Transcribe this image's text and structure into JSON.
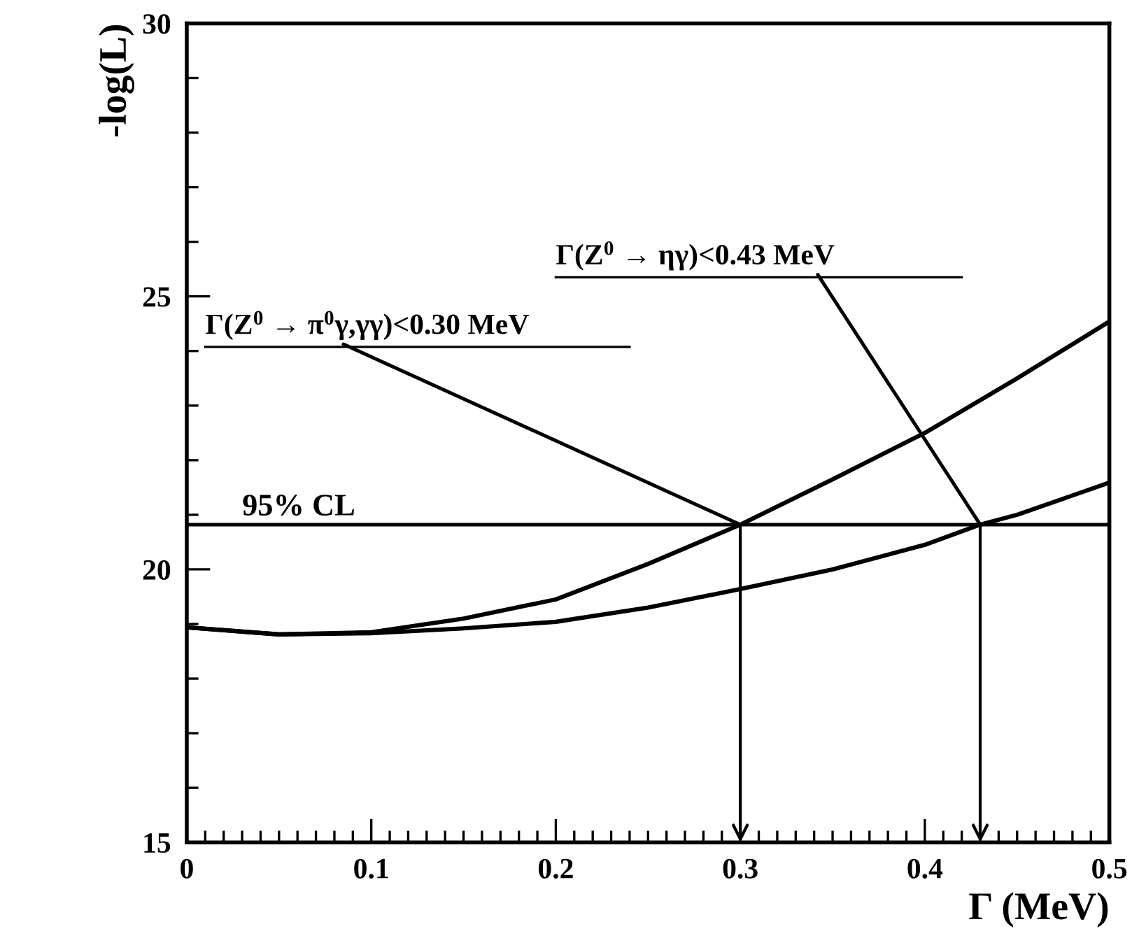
{
  "chart_data": {
    "type": "line",
    "xlabel": "Γ (MeV)",
    "ylabel": "-log(L)",
    "xlim": [
      0,
      0.5
    ],
    "ylim": [
      15,
      30
    ],
    "xticks": [
      0,
      0.1,
      0.2,
      0.3,
      0.4,
      0.5
    ],
    "yticks": [
      15,
      20,
      25,
      30
    ],
    "grid": false,
    "legend": false,
    "marker": "none",
    "line_style": "solid",
    "series": [
      {
        "color": "#000000",
        "x": [
          0,
          0.05,
          0.1,
          0.15,
          0.2,
          0.25,
          0.3,
          0.35,
          0.4,
          0.45,
          0.5
        ],
        "values": [
          18.94,
          18.81,
          18.85,
          19.1,
          19.45,
          20.1,
          20.82,
          21.65,
          22.5,
          23.5,
          24.54
        ]
      },
      {
        "color": "#000000",
        "x": [
          0,
          0.05,
          0.1,
          0.15,
          0.2,
          0.25,
          0.3,
          0.35,
          0.4,
          0.43,
          0.45,
          0.5
        ],
        "values": [
          18.94,
          18.81,
          18.83,
          18.92,
          19.04,
          19.3,
          19.64,
          20.0,
          20.45,
          20.82,
          21.0,
          21.59
        ]
      }
    ],
    "ref_lines": [
      {
        "axis": "y",
        "value": 20.82,
        "label": "95% CL",
        "color": "#000000"
      }
    ],
    "annotations": [
      {
        "text": "Γ(Z$^{0}$ → π$^{0}$γ,γγ)<0.30 MeV",
        "x": 0.3,
        "y": 20.82
      },
      {
        "text": "Γ(Z$^{0}$ → ηγ)<0.43 MeV",
        "x": 0.43,
        "y": 20.82
      }
    ]
  }
}
